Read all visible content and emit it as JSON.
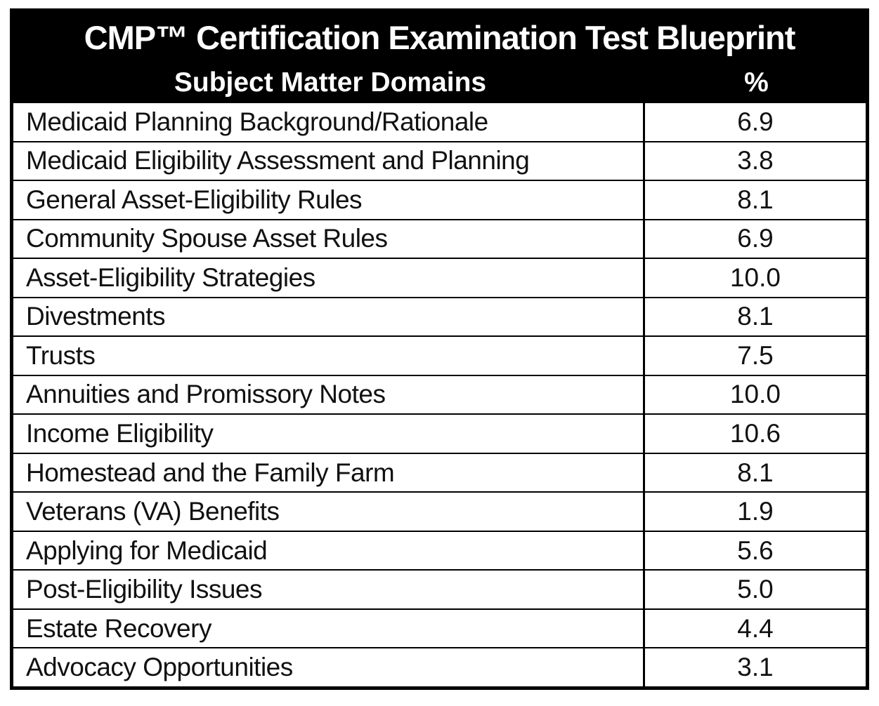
{
  "table": {
    "title": "CMP™ Certification Examination Test Blueprint",
    "columns": {
      "domain": "Subject Matter Domains",
      "pct": "%"
    },
    "rows": [
      {
        "domain": "Medicaid Planning Background/Rationale",
        "pct": "6.9"
      },
      {
        "domain": "Medicaid Eligibility Assessment and Planning",
        "pct": "3.8"
      },
      {
        "domain": "General Asset-Eligibility Rules",
        "pct": "8.1"
      },
      {
        "domain": "Community Spouse Asset Rules",
        "pct": "6.9"
      },
      {
        "domain": "Asset-Eligibility Strategies",
        "pct": "10.0"
      },
      {
        "domain": "Divestments",
        "pct": "8.1"
      },
      {
        "domain": "Trusts",
        "pct": "7.5"
      },
      {
        "domain": "Annuities and Promissory Notes",
        "pct": "10.0"
      },
      {
        "domain": "Income Eligibility",
        "pct": "10.6"
      },
      {
        "domain": "Homestead and the Family Farm",
        "pct": "8.1"
      },
      {
        "domain": "Veterans (VA) Benefits",
        "pct": "1.9"
      },
      {
        "domain": "Applying for Medicaid",
        "pct": "5.6"
      },
      {
        "domain": "Post-Eligibility Issues",
        "pct": "5.0"
      },
      {
        "domain": "Estate Recovery",
        "pct": "4.4"
      },
      {
        "domain": "Advocacy Opportunities",
        "pct": "3.1"
      }
    ],
    "colors": {
      "header_bg": "#000000",
      "header_text": "#ffffff",
      "border": "#000000",
      "row_bg": "#ffffff",
      "row_text": "#111111"
    }
  }
}
